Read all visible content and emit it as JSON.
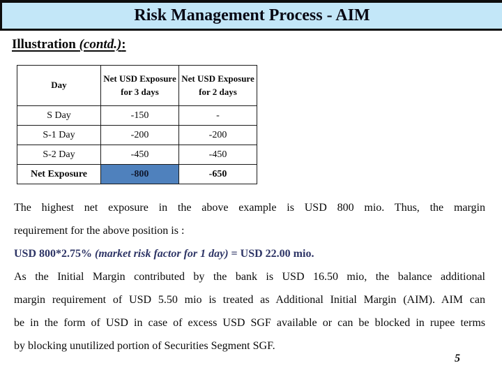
{
  "slide": {
    "title": "Risk Management Process - AIM",
    "page_number": "5"
  },
  "heading": {
    "main": "Illustration ",
    "contd": "(contd.)",
    "colon": ":"
  },
  "table": {
    "headers": [
      "Day",
      "Net USD Exposure for 3 days",
      "Net USD Exposure for 2 days"
    ],
    "rows": [
      {
        "cells": [
          "S Day",
          "-150",
          "-"
        ],
        "bold": false,
        "highlight_col": -1
      },
      {
        "cells": [
          "S-1 Day",
          "-200",
          "-200"
        ],
        "bold": false,
        "highlight_col": -1
      },
      {
        "cells": [
          "S-2 Day",
          "-450",
          "-450"
        ],
        "bold": false,
        "highlight_col": -1
      },
      {
        "cells": [
          "Net Exposure",
          "-800",
          "-650"
        ],
        "bold": true,
        "highlight_col": 1
      }
    ],
    "highlight_color": "#4f81bd"
  },
  "paragraphs": {
    "p1_lines": [
      "The highest net exposure in the above example is USD 800 mio. Thus, the margin",
      "requirement for the above position is :"
    ],
    "formula": {
      "pre": "USD 800*2.75% ",
      "italic": "(market risk factor for 1 day)",
      "post": " = USD 22.00 mio."
    },
    "p3_lines": [
      "As the Initial Margin contributed by the bank is USD 16.50 mio, the balance additional",
      "margin requirement of USD 5.50 mio is treated as Additional Initial Margin (AIM). AIM can",
      "be in the form of USD in case of excess USD SGF available or can be blocked in rupee terms",
      "by blocking unutilized portion of Securities Segment SGF."
    ]
  },
  "colors": {
    "title_bar_bg": "#c3e7f8",
    "highlight_cell": "#4f81bd",
    "formula_text": "#2e3566"
  }
}
